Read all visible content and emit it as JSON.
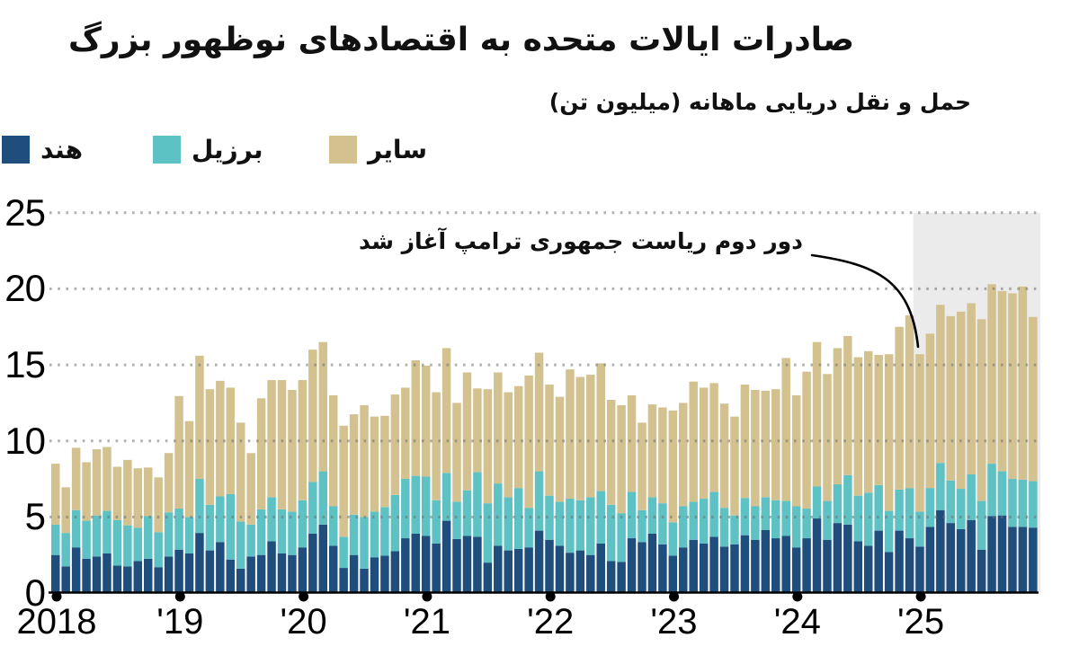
{
  "header": {
    "title": "صادرات ایالات متحده به اقتصادهای نوظهور بزرگ",
    "subtitle": "حمل و نقل دریایی ماهانه (میلیون تن)"
  },
  "legend": {
    "items": [
      {
        "label": "هند",
        "color": "#1f4e7d"
      },
      {
        "label": "برزیل",
        "color": "#5ec2c4"
      },
      {
        "label": "سایر",
        "color": "#d3c290"
      }
    ]
  },
  "annotation": {
    "text": "دور دوم ریاست جمهوری ترامپ آغاز شد",
    "points_to": "2025-01"
  },
  "chart_data": {
    "type": "bar",
    "stacked": true,
    "title": "صادرات ایالات متحده به اقتصادهای نوظهور بزرگ",
    "unit": "میلیون تن",
    "grid": "dotted-horizontal",
    "legend_position": "top-left",
    "ylim": [
      0,
      25
    ],
    "y_ticks": [
      0,
      5,
      10,
      15,
      20,
      25
    ],
    "x_tick_labels": [
      "2018",
      "'19",
      "'20",
      "'21",
      "'22",
      "'23",
      "'24",
      "'25"
    ],
    "x_start": "2018-01",
    "x_end": "2025-12",
    "x_freq": "monthly",
    "highlight_region": {
      "from": "2025-01",
      "to": "2025-12",
      "color": "#ebebeb"
    },
    "series": [
      {
        "name": "هند",
        "color": "#1f4e7d",
        "values": [
          2.5,
          1.75,
          3.0,
          2.25,
          2.4,
          2.6,
          1.8,
          1.75,
          2.1,
          2.25,
          1.7,
          2.4,
          2.85,
          2.6,
          3.95,
          2.8,
          3.35,
          2.2,
          1.6,
          2.4,
          2.5,
          3.4,
          2.6,
          2.5,
          3.0,
          3.9,
          4.5,
          3.1,
          1.65,
          2.5,
          1.6,
          2.35,
          2.45,
          2.75,
          3.6,
          3.9,
          3.75,
          3.25,
          4.75,
          3.55,
          3.75,
          3.7,
          2.0,
          3.1,
          2.8,
          2.9,
          3.0,
          4.1,
          3.5,
          3.1,
          2.65,
          2.8,
          2.5,
          3.25,
          2.1,
          2.05,
          3.6,
          3.35,
          3.9,
          3.2,
          2.45,
          3.0,
          3.5,
          3.25,
          3.7,
          3.05,
          3.2,
          3.8,
          3.5,
          4.15,
          3.6,
          3.75,
          3.0,
          3.6,
          4.9,
          3.5,
          4.6,
          4.5,
          3.4,
          3.1,
          4.1,
          2.7,
          4.1,
          3.6,
          3.05,
          4.35,
          5.45,
          4.6,
          4.2,
          4.8,
          2.85,
          5.05,
          5.1,
          4.35,
          4.35,
          4.3
        ]
      },
      {
        "name": "برزیل",
        "color": "#5ec2c4",
        "values": [
          2.0,
          2.2,
          2.45,
          2.5,
          2.7,
          2.8,
          3.0,
          2.7,
          2.2,
          2.8,
          2.3,
          2.9,
          2.7,
          2.4,
          3.55,
          3.0,
          3.0,
          4.3,
          3.1,
          2.1,
          3.0,
          2.9,
          2.9,
          2.85,
          3.1,
          3.4,
          3.5,
          2.6,
          2.05,
          2.65,
          3.4,
          3.0,
          3.2,
          3.7,
          3.9,
          3.8,
          3.9,
          2.85,
          3.15,
          2.45,
          3.0,
          4.25,
          3.9,
          4.1,
          3.5,
          4.0,
          2.6,
          3.9,
          2.9,
          2.9,
          3.55,
          3.3,
          3.8,
          3.45,
          3.7,
          3.2,
          3.05,
          2.1,
          2.4,
          2.7,
          2.2,
          2.7,
          2.5,
          2.95,
          2.95,
          2.55,
          1.9,
          2.45,
          2.2,
          2.15,
          2.5,
          2.3,
          2.7,
          1.95,
          2.1,
          2.55,
          2.55,
          3.25,
          3.0,
          3.5,
          3.0,
          2.7,
          2.7,
          3.3,
          2.3,
          2.55,
          3.1,
          2.8,
          2.65,
          3.0,
          3.2,
          3.45,
          2.9,
          3.15,
          3.1,
          3.05
        ]
      },
      {
        "name": "سایر",
        "color": "#d3c290",
        "values": [
          4.0,
          3.0,
          4.1,
          3.85,
          4.35,
          4.2,
          3.5,
          4.3,
          3.9,
          3.2,
          3.6,
          3.9,
          7.4,
          6.3,
          8.1,
          7.6,
          7.6,
          7.0,
          6.5,
          4.7,
          7.3,
          7.7,
          8.5,
          8.0,
          7.9,
          8.7,
          8.5,
          7.3,
          7.3,
          6.6,
          7.35,
          6.25,
          6.0,
          6.6,
          6.0,
          7.6,
          7.3,
          7.1,
          8.2,
          6.5,
          7.75,
          5.5,
          7.5,
          7.3,
          6.9,
          6.7,
          8.7,
          7.8,
          7.3,
          6.9,
          8.5,
          8.1,
          8.05,
          8.4,
          6.9,
          7.1,
          6.35,
          5.75,
          6.1,
          6.3,
          7.35,
          6.8,
          7.9,
          7.3,
          7.15,
          6.85,
          6.5,
          7.45,
          7.65,
          7.0,
          7.3,
          9.4,
          7.3,
          9.0,
          9.5,
          8.35,
          8.95,
          9.15,
          9.1,
          9.3,
          8.55,
          10.3,
          10.7,
          11.35,
          10.35,
          10.15,
          10.4,
          10.8,
          11.65,
          11.25,
          11.95,
          11.8,
          11.85,
          12.2,
          12.7,
          10.8
        ]
      }
    ]
  }
}
